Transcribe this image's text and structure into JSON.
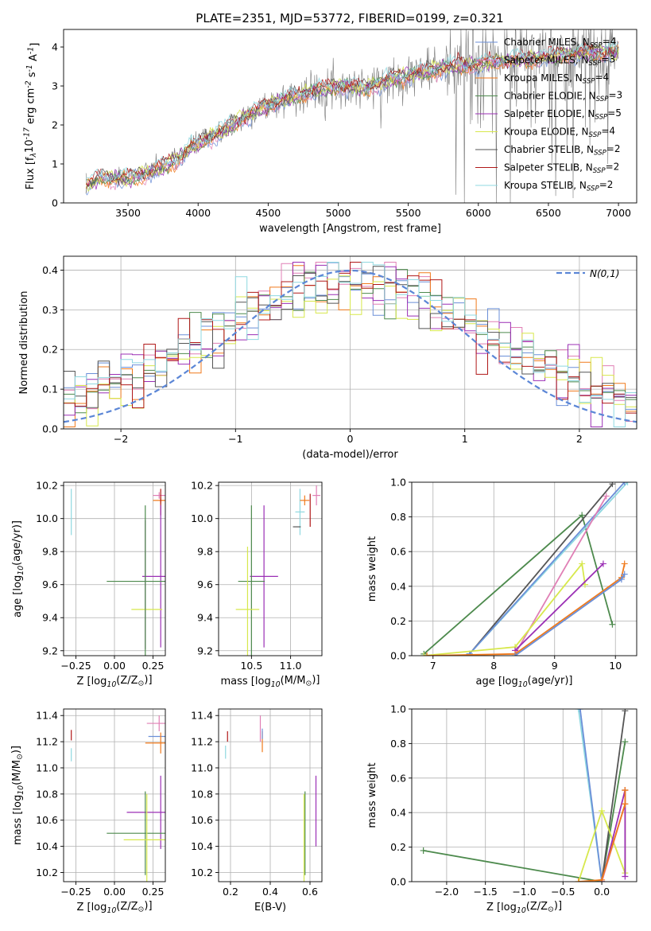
{
  "chart_data": [
    {
      "type": "line",
      "title": "PLATE=2351, MJD=53772, FIBERID=0199, z=0.321",
      "xlabel": "wavelength [Angstrom, rest frame]",
      "ylabel": "Flux [f$_\\lambda$10$^{-17}$ erg cm$^{-2}$ s$^{-1}$ A$^{-1}$]",
      "xlim": [
        3040,
        7130
      ],
      "ylim": [
        0,
        4.45
      ],
      "xticks": [
        3500,
        4000,
        4500,
        5000,
        5500,
        6000,
        6500,
        7000
      ],
      "yticks": [
        0,
        1,
        2,
        3,
        4
      ],
      "grid": false,
      "legend_position": "top-right",
      "series": [
        {
          "name": "Chabrier MILES, N$_{SSP}$=4",
          "color": "#6b8fd8"
        },
        {
          "name": "Salpeter MILES, N$_{SSP}$=3",
          "color": "#e07fb5"
        },
        {
          "name": "Kroupa MILES, N$_{SSP}$=4",
          "color": "#f07a1c"
        },
        {
          "name": "Chabrier ELODIE, N$_{SSP}$=3",
          "color": "#4d8a4d"
        },
        {
          "name": "Salpeter ELODIE, N$_{SSP}$=5",
          "color": "#9b2fb5"
        },
        {
          "name": "Kroupa ELODIE, N$_{SSP}$=4",
          "color": "#d7e84c"
        },
        {
          "name": "Chabrier STELIB, N$_{SSP}$=2",
          "color": "#555555"
        },
        {
          "name": "Salpeter STELIB, N$_{SSP}$=2",
          "color": "#b01818"
        },
        {
          "name": "Kroupa STELIB, N$_{SSP}$=2",
          "color": "#8fd8e0"
        }
      ],
      "continuum_points": {
        "x": [
          3200,
          3300,
          3500,
          3700,
          3850,
          3950,
          4000,
          4200,
          4400,
          4600,
          4800,
          5000,
          5200,
          5400,
          5600,
          5800,
          6000,
          6200,
          6400,
          6600,
          6800,
          7000
        ],
        "y": [
          0.45,
          0.65,
          0.62,
          0.85,
          1.1,
          1.45,
          1.5,
          1.9,
          2.35,
          2.65,
          2.85,
          3.0,
          2.95,
          3.2,
          3.35,
          3.5,
          3.55,
          3.65,
          3.7,
          3.8,
          3.85,
          3.9
        ]
      }
    },
    {
      "type": "bar",
      "xlabel": "(data-model)/error",
      "ylabel": "Normed distribution",
      "xlim": [
        -2.5,
        2.5
      ],
      "ylim": [
        0,
        0.435
      ],
      "xticks": [
        -2,
        -1,
        0,
        1,
        2
      ],
      "yticks": [
        0.0,
        0.1,
        0.2,
        0.3,
        0.4
      ],
      "grid": true,
      "legend_position": "top-right",
      "reference_curve": {
        "name": "$\\mathcal{N}(0,1)$",
        "color": "#5b86d6"
      },
      "bins": {
        "start": -2.5,
        "width": 0.1,
        "count": 50
      }
    },
    {
      "type": "scatter",
      "xlabel": "Z [log$_{10}$(Z/Z$_\\odot$)]",
      "ylabel": "age  [log$_{10}$(age/yr)]",
      "xlim": [
        -0.33,
        0.33
      ],
      "ylim": [
        9.17,
        10.22
      ],
      "xticks": [
        -0.25,
        0.0,
        0.25
      ],
      "yticks": [
        9.2,
        9.4,
        9.6,
        9.8,
        10.0,
        10.2
      ],
      "grid": true,
      "points": [
        {
          "color": "#8fd8e0",
          "x": -0.28,
          "y": 10.04,
          "xerr": 0.0,
          "yerr": 0.14
        },
        {
          "color": "#e07fb5",
          "x": 0.29,
          "y": 10.14,
          "xerr": 0.04,
          "yerr": 0.02
        },
        {
          "color": "#f07a1c",
          "x": 0.3,
          "y": 10.11,
          "xerr": 0.05,
          "yerr": 0.02
        },
        {
          "color": "#b01818",
          "x": 0.3,
          "y": 10.1,
          "xerr": 0.0,
          "yerr": 0.08
        },
        {
          "color": "#9b2fb5",
          "x": 0.3,
          "y": 9.65,
          "xerr": 0.12,
          "yerr": 0.43
        },
        {
          "color": "#4d8a4d",
          "x": 0.2,
          "y": 9.62,
          "xerr": 0.25,
          "yerr": 0.46
        },
        {
          "color": "#d7e84c",
          "x": 0.21,
          "y": 9.45,
          "xerr": 0.1,
          "yerr": 0.0
        },
        {
          "color": "#5a7f5a",
          "x": 0.2,
          "y": 9.6,
          "xerr": 0.0,
          "yerr": 0.39
        }
      ]
    },
    {
      "type": "scatter",
      "xlabel": "mass [log$_{10}$(M/M$_\\odot$)]",
      "xlim": [
        10.08,
        11.4
      ],
      "ylim": [
        9.17,
        10.22
      ],
      "xticks": [
        10.5,
        11.0
      ],
      "yticks": [
        9.2,
        9.4,
        9.6,
        9.8,
        10.0,
        10.2
      ],
      "grid": true,
      "points": [
        {
          "color": "#8fd8e0",
          "x": 11.12,
          "y": 10.04,
          "xerr": 0.06,
          "yerr": 0.14
        },
        {
          "color": "#e07fb5",
          "x": 11.33,
          "y": 10.14,
          "xerr": 0.05,
          "yerr": 0.06
        },
        {
          "color": "#f07a1c",
          "x": 11.18,
          "y": 10.11,
          "xerr": 0.06,
          "yerr": 0.03
        },
        {
          "color": "#b01818",
          "x": 11.25,
          "y": 10.05,
          "xerr": 0.0,
          "yerr": 0.1
        },
        {
          "color": "#9b2fb5",
          "x": 10.66,
          "y": 9.65,
          "xerr": 0.18,
          "yerr": 0.43
        },
        {
          "color": "#4d8a4d",
          "x": 10.5,
          "y": 9.62,
          "xerr": 0.17,
          "yerr": 0.46
        },
        {
          "color": "#d7e84c",
          "x": 10.45,
          "y": 9.45,
          "xerr": 0.15,
          "yerr": 0.38
        },
        {
          "color": "#555555",
          "x": 11.08,
          "y": 9.95,
          "xerr": 0.05,
          "yerr": 0.0
        }
      ]
    },
    {
      "type": "line",
      "xlabel": "age  [log$_{10}$(age/yr)]",
      "ylabel": "mass weight",
      "xlim": [
        6.65,
        10.35
      ],
      "ylim": [
        0.0,
        1.0
      ],
      "xticks": [
        7,
        8,
        9,
        10
      ],
      "yticks": [
        0.0,
        0.2,
        0.4,
        0.6,
        0.8,
        1.0
      ],
      "grid": true,
      "series": [
        {
          "color": "#4d8a4d",
          "x": [
            6.85,
            9.45,
            9.95
          ],
          "y": [
            0.01,
            0.81,
            0.18
          ]
        },
        {
          "color": "#555555",
          "x": [
            7.6,
            9.95
          ],
          "y": [
            0.01,
            0.99
          ]
        },
        {
          "color": "#8fd8e0",
          "x": [
            7.6,
            10.2
          ],
          "y": [
            0.01,
            1.0
          ]
        },
        {
          "color": "#6b8fd8",
          "x": [
            7.6,
            10.15
          ],
          "y": [
            0.01,
            1.0
          ]
        },
        {
          "color": "#e07fb5",
          "x": [
            8.35,
            9.85
          ],
          "y": [
            0.01,
            0.92
          ]
        },
        {
          "color": "#d7e84c",
          "x": [
            6.85,
            8.35,
            9.45,
            9.5
          ],
          "y": [
            0.0,
            0.05,
            0.53,
            0.41
          ]
        },
        {
          "color": "#9b2fb5",
          "x": [
            8.35,
            9.8
          ],
          "y": [
            0.03,
            0.53
          ]
        },
        {
          "color": "#f07a1c",
          "x": [
            6.9,
            8.35,
            10.1,
            10.15
          ],
          "y": [
            0.0,
            0.01,
            0.45,
            0.53
          ]
        },
        {
          "color": "#6b8fd8",
          "x": [
            8.35,
            10.1,
            10.15
          ],
          "y": [
            0.0,
            0.44,
            0.47
          ]
        }
      ]
    },
    {
      "type": "scatter",
      "xlabel": "Z [log$_{10}$(Z/Z$_\\odot$)]",
      "ylabel": "mass [log$_{10}$(M/M$_\\odot$)]",
      "xlim": [
        -0.33,
        0.33
      ],
      "ylim": [
        10.13,
        11.45
      ],
      "xticks": [
        -0.25,
        0.0,
        0.25
      ],
      "yticks": [
        10.2,
        10.4,
        10.6,
        10.8,
        11.0,
        11.2,
        11.4
      ],
      "grid": true,
      "points": [
        {
          "color": "#8fd8e0",
          "x": -0.28,
          "y": 11.1,
          "xerr": 0.0,
          "yerr": 0.05
        },
        {
          "color": "#b01818",
          "x": -0.28,
          "y": 11.25,
          "xerr": 0.0,
          "yerr": 0.04
        },
        {
          "color": "#e07fb5",
          "x": 0.29,
          "y": 11.34,
          "xerr": 0.08,
          "yerr": 0.06
        },
        {
          "color": "#6b8fd8",
          "x": 0.28,
          "y": 11.24,
          "xerr": 0.06,
          "yerr": 0.0
        },
        {
          "color": "#f07a1c",
          "x": 0.3,
          "y": 11.19,
          "xerr": 0.1,
          "yerr": 0.08
        },
        {
          "color": "#9b2fb5",
          "x": 0.3,
          "y": 10.66,
          "xerr": 0.22,
          "yerr": 0.28
        },
        {
          "color": "#4d8a4d",
          "x": 0.2,
          "y": 10.5,
          "xerr": 0.25,
          "yerr": 0.32
        },
        {
          "color": "#d7e84c",
          "x": 0.21,
          "y": 10.45,
          "xerr": 0.15,
          "yerr": 0.35
        }
      ]
    },
    {
      "type": "scatter",
      "xlabel": "E(B-V)",
      "xlim": [
        0.14,
        0.66
      ],
      "ylim": [
        10.13,
        11.45
      ],
      "xticks": [
        0.2,
        0.4,
        0.6
      ],
      "yticks": [
        10.2,
        10.4,
        10.6,
        10.8,
        11.0,
        11.2,
        11.4
      ],
      "grid": true,
      "points": [
        {
          "color": "#8fd8e0",
          "x": 0.175,
          "y": 11.12,
          "yerr": 0.05
        },
        {
          "color": "#b01818",
          "x": 0.185,
          "y": 11.24,
          "yerr": 0.04
        },
        {
          "color": "#e07fb5",
          "x": 0.35,
          "y": 11.3,
          "yerr": 0.1
        },
        {
          "color": "#f07a1c",
          "x": 0.36,
          "y": 11.2,
          "yerr": 0.08
        },
        {
          "color": "#6b8fd8",
          "x": 0.36,
          "y": 11.26,
          "yerr": 0.04
        },
        {
          "color": "#9b2fb5",
          "x": 0.63,
          "y": 10.67,
          "yerr": 0.27
        },
        {
          "color": "#4d8a4d",
          "x": 0.575,
          "y": 10.5,
          "yerr": 0.32
        },
        {
          "color": "#d7e84c",
          "x": 0.57,
          "y": 10.45,
          "yerr": 0.35
        }
      ]
    },
    {
      "type": "line",
      "xlabel": "Z [log$_{10}$(Z/Z$_\\odot$)]",
      "ylabel": "mass weight",
      "xlim": [
        -2.45,
        0.45
      ],
      "ylim": [
        0.0,
        1.0
      ],
      "xticks": [
        -2.0,
        -1.5,
        -1.0,
        -0.5,
        0.0
      ],
      "yticks": [
        0.0,
        0.2,
        0.4,
        0.6,
        0.8,
        1.0
      ],
      "grid": true,
      "series": [
        {
          "color": "#8fd8e0",
          "x": [
            -0.3,
            0.0
          ],
          "y": [
            1.0,
            0.0
          ]
        },
        {
          "color": "#6b8fd8",
          "x": [
            -0.28,
            0.0
          ],
          "y": [
            1.0,
            0.0
          ]
        },
        {
          "color": "#4d8a4d",
          "x": [
            -2.3,
            0.0,
            0.3
          ],
          "y": [
            0.18,
            0.0,
            0.81
          ]
        },
        {
          "color": "#555555",
          "x": [
            0.0,
            0.3
          ],
          "y": [
            0.0,
            0.99
          ]
        },
        {
          "color": "#d7e84c",
          "x": [
            -0.3,
            0.0,
            0.3,
            0.3
          ],
          "y": [
            0.0,
            0.41,
            0.05,
            0.53
          ]
        },
        {
          "color": "#9b2fb5",
          "x": [
            0.0,
            0.3,
            0.3
          ],
          "y": [
            0.0,
            0.53,
            0.03
          ]
        },
        {
          "color": "#e07fb5",
          "x": [
            0.0,
            0.3
          ],
          "y": [
            0.0,
            0.45
          ]
        },
        {
          "color": "#f07a1c",
          "x": [
            -0.3,
            0.0,
            0.3,
            0.3
          ],
          "y": [
            0.0,
            0.01,
            0.45,
            0.53
          ]
        }
      ]
    }
  ]
}
